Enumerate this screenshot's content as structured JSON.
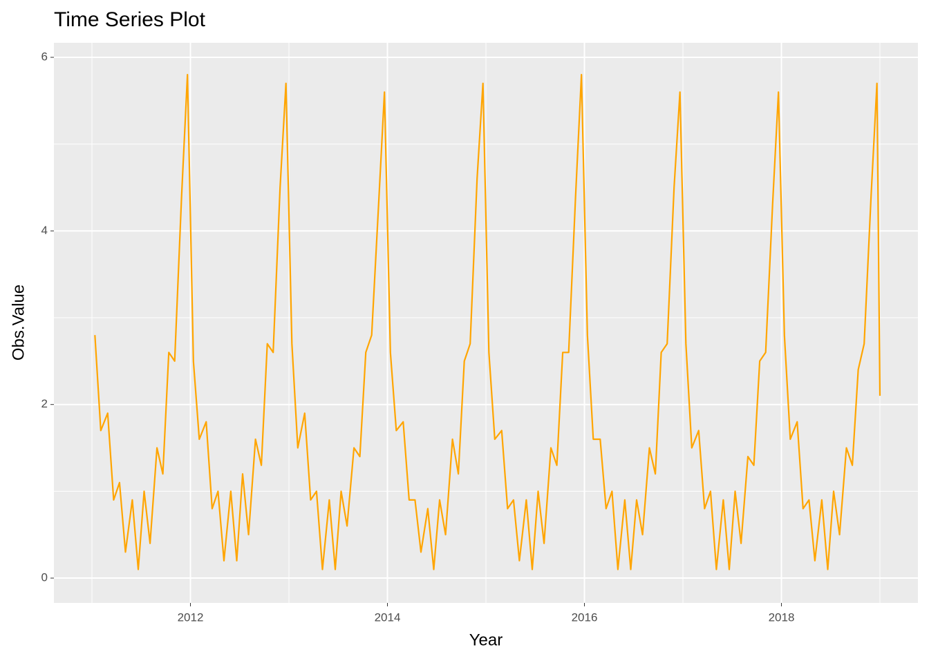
{
  "chart_data": {
    "type": "line",
    "title": "Time Series Plot",
    "x_label": "Year",
    "y_label": "Obs.Value",
    "color": "#FFA500",
    "grid": true,
    "xlim": [
      2010.614,
      2019.386
    ],
    "xticks": [
      2012,
      2014,
      2016,
      2018
    ],
    "xminor_ticks": [
      2011,
      2013,
      2015,
      2017,
      2019
    ],
    "ylim": [
      -0.286,
      6.167
    ],
    "yticks": [
      0,
      2,
      4,
      6
    ],
    "yminor_ticks": [
      1,
      3,
      5
    ],
    "x": [
      2011.03,
      2011.09,
      2011.16,
      2011.22,
      2011.28,
      2011.34,
      2011.41,
      2011.47,
      2011.53,
      2011.59,
      2011.66,
      2011.72,
      2011.78,
      2011.84,
      2011.91,
      2011.97,
      2012.03,
      2012.09,
      2012.16,
      2012.22,
      2012.28,
      2012.34,
      2012.41,
      2012.47,
      2012.53,
      2012.59,
      2012.66,
      2012.72,
      2012.78,
      2012.84,
      2012.91,
      2012.97,
      2013.03,
      2013.09,
      2013.16,
      2013.22,
      2013.28,
      2013.34,
      2013.41,
      2013.47,
      2013.53,
      2013.59,
      2013.66,
      2013.72,
      2013.78,
      2013.84,
      2013.91,
      2013.97,
      2014.03,
      2014.09,
      2014.16,
      2014.22,
      2014.28,
      2014.34,
      2014.41,
      2014.47,
      2014.53,
      2014.59,
      2014.66,
      2014.72,
      2014.78,
      2014.84,
      2014.91,
      2014.97,
      2015.03,
      2015.09,
      2015.16,
      2015.22,
      2015.28,
      2015.34,
      2015.41,
      2015.47,
      2015.53,
      2015.59,
      2015.66,
      2015.72,
      2015.78,
      2015.84,
      2015.91,
      2015.97,
      2016.03,
      2016.09,
      2016.16,
      2016.22,
      2016.28,
      2016.34,
      2016.41,
      2016.47,
      2016.53,
      2016.59,
      2016.66,
      2016.72,
      2016.78,
      2016.84,
      2016.91,
      2016.97,
      2017.03,
      2017.09,
      2017.16,
      2017.22,
      2017.28,
      2017.34,
      2017.41,
      2017.47,
      2017.53,
      2017.59,
      2017.66,
      2017.72,
      2017.78,
      2017.84,
      2017.91,
      2017.97,
      2018.03,
      2018.09,
      2018.16,
      2018.22,
      2018.28,
      2018.34,
      2018.41,
      2018.47,
      2018.53,
      2018.59,
      2018.66,
      2018.72,
      2018.78,
      2018.84,
      2018.91,
      2018.97,
      2019.0
    ],
    "values": [
      2.8,
      1.7,
      1.9,
      0.9,
      1.1,
      0.3,
      0.9,
      0.1,
      1.0,
      0.4,
      1.5,
      1.2,
      2.6,
      2.5,
      4.4,
      5.8,
      2.5,
      1.6,
      1.8,
      0.8,
      1.0,
      0.2,
      1.0,
      0.2,
      1.2,
      0.5,
      1.6,
      1.3,
      2.7,
      2.6,
      4.5,
      5.7,
      2.7,
      1.5,
      1.9,
      0.9,
      1.0,
      0.1,
      0.9,
      0.1,
      1.0,
      0.6,
      1.5,
      1.4,
      2.6,
      2.8,
      4.3,
      5.6,
      2.6,
      1.7,
      1.8,
      0.9,
      0.9,
      0.3,
      0.8,
      0.1,
      0.9,
      0.5,
      1.6,
      1.2,
      2.5,
      2.7,
      4.6,
      5.7,
      2.6,
      1.6,
      1.7,
      0.8,
      0.9,
      0.2,
      0.9,
      0.1,
      1.0,
      0.4,
      1.5,
      1.3,
      2.6,
      2.6,
      4.4,
      5.8,
      2.8,
      1.6,
      1.6,
      0.8,
      1.0,
      0.1,
      0.9,
      0.1,
      0.9,
      0.5,
      1.5,
      1.2,
      2.6,
      2.7,
      4.5,
      5.6,
      2.7,
      1.5,
      1.7,
      0.8,
      1.0,
      0.1,
      0.9,
      0.1,
      1.0,
      0.4,
      1.4,
      1.3,
      2.5,
      2.6,
      4.3,
      5.6,
      2.8,
      1.6,
      1.8,
      0.8,
      0.9,
      0.2,
      0.9,
      0.1,
      1.0,
      0.5,
      1.5,
      1.3,
      2.4,
      2.7,
      4.4,
      5.7,
      2.1
    ]
  }
}
